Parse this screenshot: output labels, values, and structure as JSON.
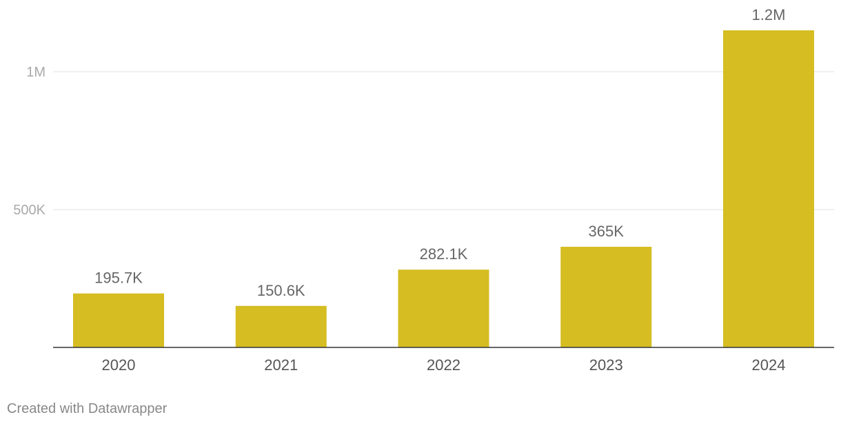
{
  "chart_data": {
    "type": "bar",
    "categories": [
      "2020",
      "2021",
      "2022",
      "2023",
      "2024"
    ],
    "values": [
      195700,
      150600,
      282100,
      365000,
      1150000
    ],
    "value_labels": [
      "195.7K",
      "150.6K",
      "282.1K",
      "365K",
      "1.2M"
    ],
    "yticks": [
      {
        "value": 500000,
        "label": "500K"
      },
      {
        "value": 1000000,
        "label": "1M"
      }
    ],
    "ylim": [
      0,
      1150000
    ],
    "grid": true,
    "bar_color": "#d5bd22",
    "title": "",
    "xlabel": "",
    "ylabel": ""
  },
  "footer": {
    "credit": "Created with Datawrapper"
  }
}
